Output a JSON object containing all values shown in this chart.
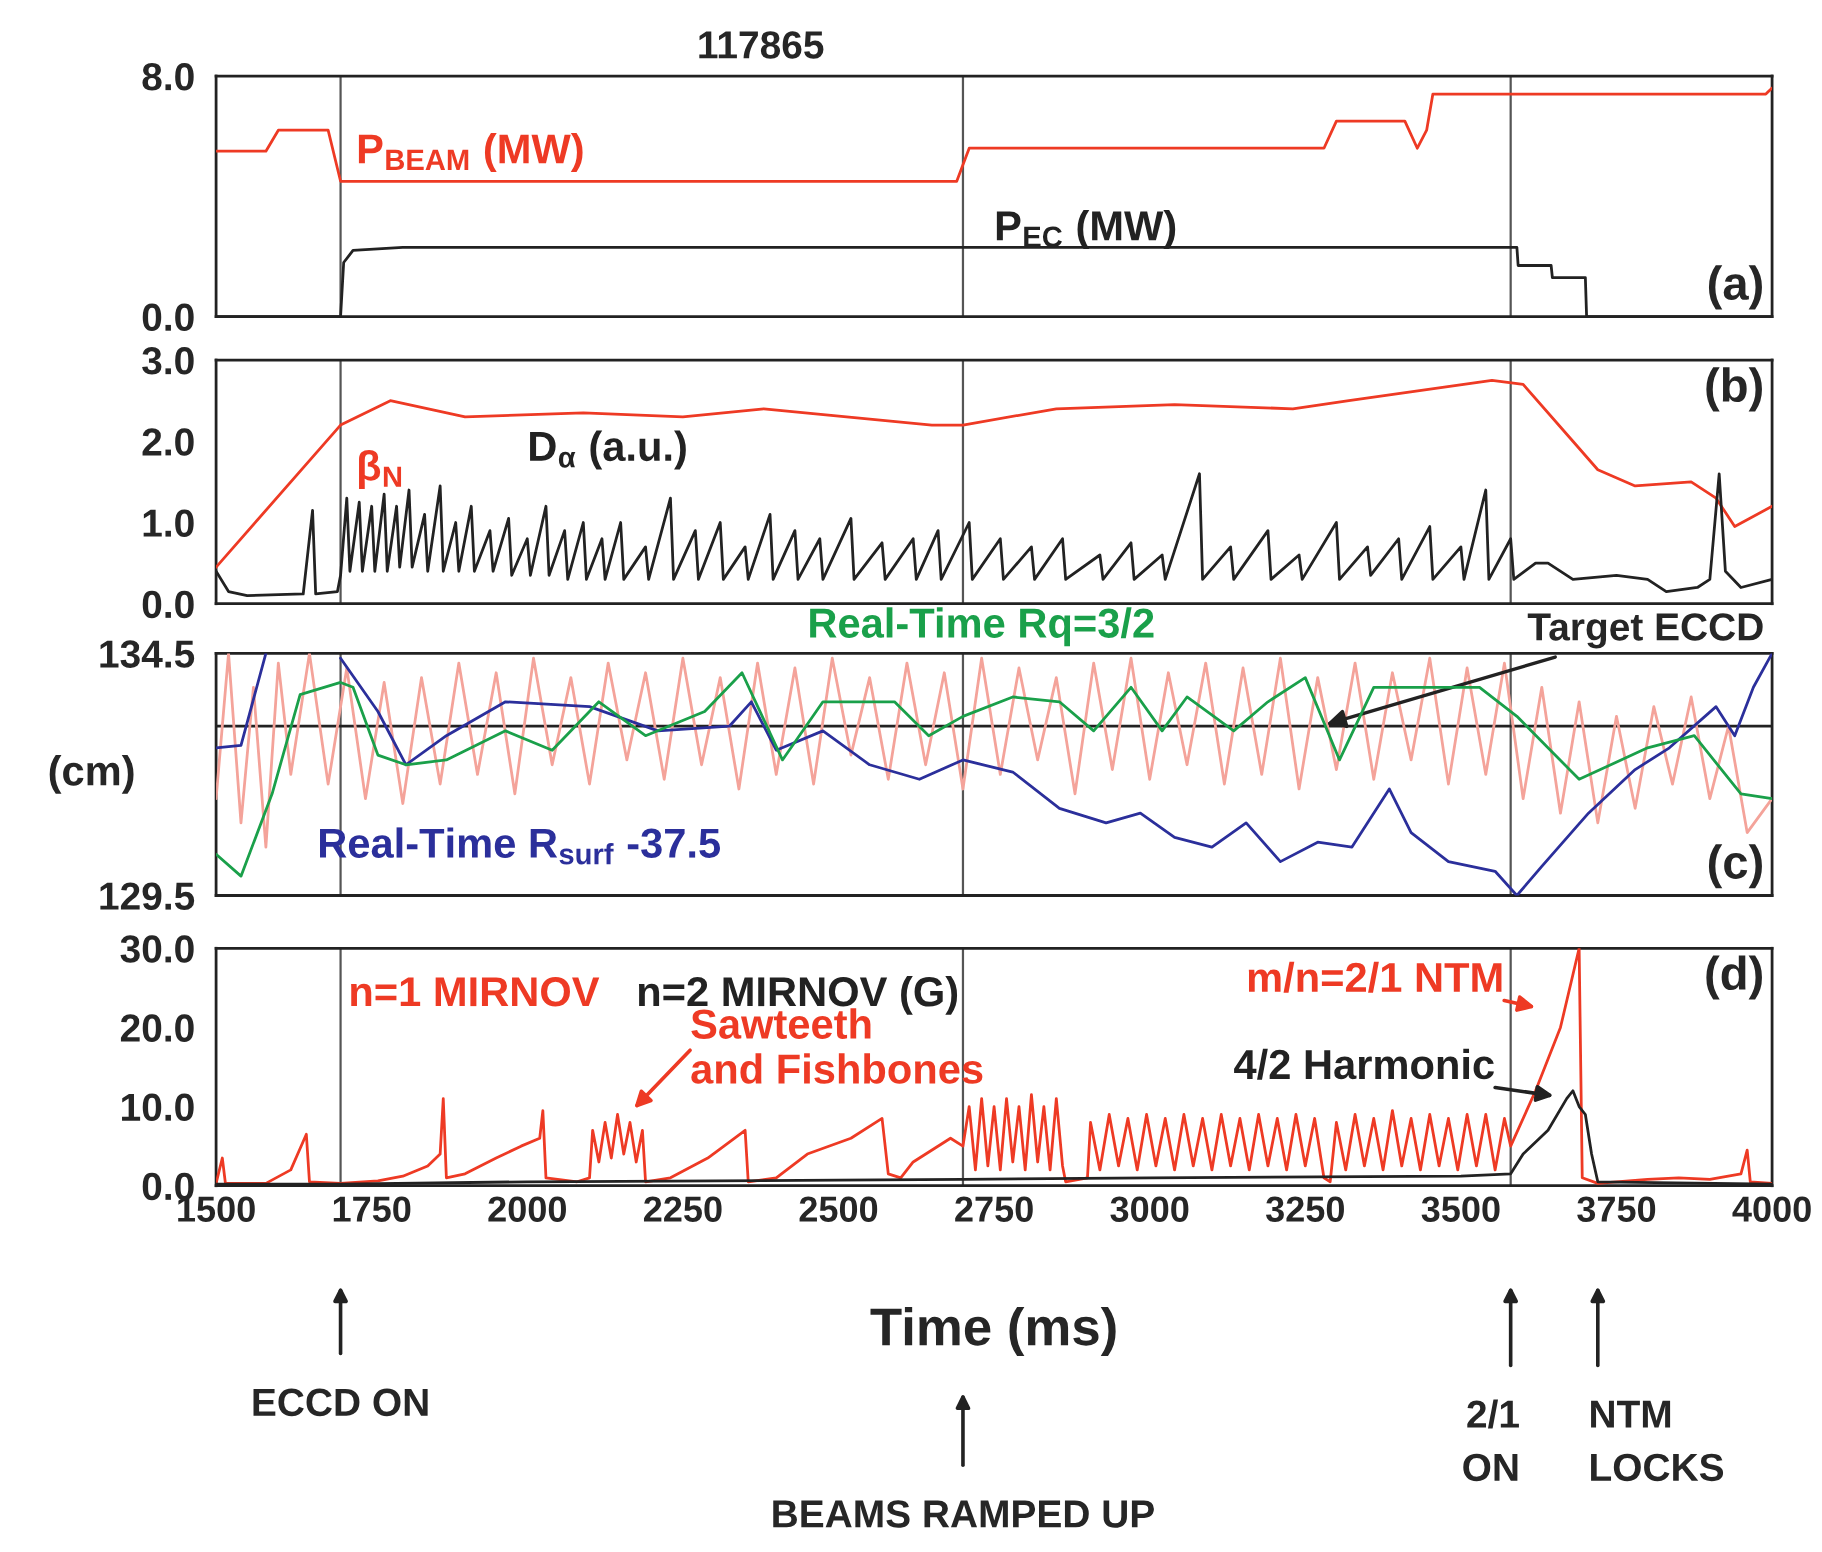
{
  "chart_data": [
    {
      "type": "line",
      "title": "117865",
      "xlim": [
        1500,
        4000
      ],
      "xticks": [
        1500,
        1750,
        2000,
        2250,
        2500,
        2750,
        3000,
        3250,
        3500,
        3750,
        4000
      ],
      "ylim": [
        0,
        8
      ],
      "yticks": [
        {
          "value": 0,
          "label": "0.0"
        },
        {
          "value": 8,
          "label": "8.0"
        }
      ],
      "tick_labels": "y",
      "ref_lines": [
        {
          "axis": "x",
          "value": 1700,
          "color": "#555555"
        },
        {
          "axis": "x",
          "value": 2700,
          "color": "#555555"
        },
        {
          "axis": "x",
          "value": 3580,
          "color": "#555555"
        }
      ],
      "annotations": [
        "(a)"
      ],
      "series": [
        {
          "name": "P$_{BEAM}$ (MW)",
          "color": "#ee3a24",
          "x": [
            1500,
            1580,
            1600,
            1680,
            1700,
            2690,
            2710,
            3280,
            3300,
            3410,
            3430,
            3445,
            3455,
            3990,
            4000
          ],
          "values": [
            5.5,
            5.5,
            6.2,
            6.2,
            4.5,
            4.5,
            5.6,
            5.6,
            6.5,
            6.5,
            5.6,
            6.2,
            7.4,
            7.4,
            7.6
          ]
        },
        {
          "name": "P$_{EC}$ (MW)",
          "color": "#222222",
          "x": [
            1500,
            1700,
            1705,
            1720,
            1800,
            3590,
            3592,
            3645,
            3647,
            3700,
            3702,
            4000
          ],
          "values": [
            0,
            0,
            1.8,
            2.2,
            2.3,
            2.3,
            1.7,
            1.7,
            1.3,
            1.3,
            0,
            0
          ]
        }
      ]
    },
    {
      "type": "line",
      "xlim": [
        1500,
        4000
      ],
      "xticks": [
        1500,
        1750,
        2000,
        2250,
        2500,
        2750,
        3000,
        3250,
        3500,
        3750,
        4000
      ],
      "ylim": [
        0,
        3
      ],
      "yticks": [
        {
          "value": 0,
          "label": "0.0"
        },
        {
          "value": 1,
          "label": "1.0"
        },
        {
          "value": 2,
          "label": "2.0"
        },
        {
          "value": 3,
          "label": "3.0"
        }
      ],
      "tick_labels": "y",
      "ref_lines": [
        {
          "axis": "x",
          "value": 1700,
          "color": "#555555"
        },
        {
          "axis": "x",
          "value": 2700,
          "color": "#555555"
        },
        {
          "axis": "x",
          "value": 3580,
          "color": "#555555"
        }
      ],
      "annotations": [
        "(b)"
      ],
      "series": [
        {
          "name": "β$_{N}$",
          "color": "#ee3a24",
          "x": [
            1500,
            1700,
            1780,
            1900,
            2090,
            2250,
            2380,
            2650,
            2700,
            2850,
            3040,
            3230,
            3320,
            3550,
            3600,
            3680,
            3720,
            3780,
            3870,
            3910,
            3940,
            4000
          ],
          "values": [
            0.45,
            2.2,
            2.5,
            2.3,
            2.35,
            2.3,
            2.4,
            2.2,
            2.2,
            2.4,
            2.45,
            2.4,
            2.5,
            2.75,
            2.7,
            2.0,
            1.65,
            1.45,
            1.5,
            1.3,
            0.95,
            1.2
          ]
        },
        {
          "name": "D$_{α}$ (a.u.)",
          "color": "#222222",
          "x": [
            1500,
            1520,
            1550,
            1640,
            1655,
            1660,
            1695,
            1700,
            1710,
            1715,
            1730,
            1735,
            1750,
            1755,
            1770,
            1775,
            1790,
            1795,
            1810,
            1815,
            1835,
            1840,
            1860,
            1865,
            1885,
            1890,
            1910,
            1915,
            1940,
            1945,
            1970,
            1975,
            2000,
            2005,
            2030,
            2035,
            2060,
            2065,
            2090,
            2095,
            2120,
            2125,
            2150,
            2155,
            2190,
            2195,
            2230,
            2235,
            2270,
            2275,
            2310,
            2315,
            2350,
            2355,
            2390,
            2395,
            2430,
            2435,
            2470,
            2475,
            2520,
            2525,
            2570,
            2575,
            2620,
            2625,
            2660,
            2665,
            2710,
            2715,
            2760,
            2765,
            2810,
            2815,
            2860,
            2865,
            2920,
            2925,
            2970,
            2975,
            3020,
            3025,
            3080,
            3085,
            3130,
            3135,
            3190,
            3195,
            3240,
            3245,
            3300,
            3305,
            3350,
            3355,
            3400,
            3405,
            3450,
            3455,
            3500,
            3505,
            3540,
            3545,
            3580,
            3585,
            3620,
            3640,
            3680,
            3750,
            3800,
            3830,
            3880,
            3900,
            3915,
            3925,
            3950,
            4000
          ],
          "values": [
            0.4,
            0.15,
            0.1,
            0.12,
            1.15,
            0.12,
            0.15,
            0.35,
            1.3,
            0.4,
            1.25,
            0.4,
            1.2,
            0.4,
            1.35,
            0.4,
            1.2,
            0.45,
            1.4,
            0.45,
            1.1,
            0.4,
            1.45,
            0.4,
            1.0,
            0.4,
            1.2,
            0.4,
            0.9,
            0.4,
            1.05,
            0.35,
            0.8,
            0.35,
            1.2,
            0.35,
            0.9,
            0.3,
            1.0,
            0.3,
            0.8,
            0.3,
            1.0,
            0.3,
            0.7,
            0.3,
            1.3,
            0.3,
            0.9,
            0.3,
            1.0,
            0.3,
            0.7,
            0.3,
            1.1,
            0.3,
            0.9,
            0.3,
            0.8,
            0.3,
            1.05,
            0.3,
            0.75,
            0.3,
            0.8,
            0.3,
            0.9,
            0.3,
            1.0,
            0.3,
            0.8,
            0.3,
            0.7,
            0.3,
            0.8,
            0.3,
            0.6,
            0.3,
            0.75,
            0.3,
            0.6,
            0.3,
            1.6,
            0.3,
            0.7,
            0.3,
            0.9,
            0.3,
            0.6,
            0.3,
            1.0,
            0.3,
            0.7,
            0.35,
            0.8,
            0.3,
            0.95,
            0.3,
            0.7,
            0.3,
            1.4,
            0.3,
            0.8,
            0.3,
            0.5,
            0.5,
            0.3,
            0.35,
            0.3,
            0.15,
            0.2,
            0.3,
            1.6,
            0.4,
            0.2,
            0.3
          ]
        }
      ]
    },
    {
      "type": "line",
      "ylabel": "(cm)",
      "xlim": [
        1500,
        4000
      ],
      "xticks": [
        1500,
        1750,
        2000,
        2250,
        2500,
        2750,
        3000,
        3250,
        3500,
        3750,
        4000
      ],
      "ylim": [
        129.5,
        134.5
      ],
      "yticks": [
        129.5,
        134.5
      ],
      "tick_labels": "y",
      "ref_lines": [
        {
          "axis": "x",
          "value": 1700,
          "color": "#555555"
        },
        {
          "axis": "x",
          "value": 2700,
          "color": "#555555"
        },
        {
          "axis": "x",
          "value": 3580,
          "color": "#555555"
        },
        {
          "axis": "y",
          "value": 133.0,
          "label": "Target ECCD",
          "color": "#222222"
        }
      ],
      "annotations": [
        "(c)"
      ],
      "series": [
        {
          "color": "#f4a39a",
          "x": [
            1500,
            1520,
            1540,
            1560,
            1580,
            1600,
            1620,
            1650,
            1680,
            1710,
            1740,
            1770,
            1800,
            1830,
            1860,
            1890,
            1920,
            1950,
            1980,
            2010,
            2040,
            2070,
            2100,
            2130,
            2160,
            2190,
            2220,
            2250,
            2280,
            2310,
            2340,
            2370,
            2400,
            2430,
            2460,
            2490,
            2520,
            2550,
            2580,
            2610,
            2640,
            2670,
            2700,
            2730,
            2760,
            2790,
            2820,
            2850,
            2880,
            2910,
            2940,
            2970,
            3000,
            3030,
            3060,
            3090,
            3120,
            3150,
            3180,
            3210,
            3240,
            3270,
            3300,
            3330,
            3360,
            3390,
            3420,
            3450,
            3480,
            3510,
            3540,
            3570,
            3600,
            3630,
            3660,
            3690,
            3720,
            3750,
            3780,
            3810,
            3840,
            3870,
            3900,
            3930,
            3960,
            4000
          ],
          "values": [
            131.5,
            134.5,
            131.0,
            133.8,
            130.5,
            134.3,
            132.0,
            134.5,
            131.8,
            134.2,
            131.5,
            133.9,
            131.4,
            134.0,
            131.8,
            134.3,
            132.0,
            134.1,
            131.6,
            134.4,
            132.2,
            134.0,
            131.8,
            134.3,
            132.3,
            134.1,
            131.9,
            134.4,
            132.2,
            134.0,
            131.7,
            134.3,
            132.0,
            134.2,
            131.8,
            134.4,
            132.4,
            134.0,
            131.9,
            134.3,
            132.2,
            134.1,
            131.7,
            134.4,
            132.0,
            134.2,
            132.3,
            134.0,
            131.6,
            134.3,
            132.1,
            134.4,
            131.9,
            134.1,
            132.2,
            134.3,
            131.8,
            134.2,
            132.0,
            134.4,
            131.7,
            134.0,
            132.1,
            134.3,
            131.9,
            134.1,
            132.3,
            134.4,
            131.8,
            134.2,
            132.0,
            134.3,
            131.5,
            133.8,
            131.2,
            133.5,
            131.0,
            133.2,
            131.3,
            133.4,
            131.8,
            133.6,
            131.5,
            133.0,
            130.8,
            131.5
          ]
        },
        {
          "name": "Real-Time R$_{surf}$ -37.5",
          "color": "#2b2f9b",
          "x": [
            1500,
            1540,
            1580,
            1640,
            1700,
            1760,
            1805,
            1870,
            1965,
            2100,
            2210,
            2325,
            2360,
            2400,
            2475,
            2550,
            2630,
            2700,
            2780,
            2855,
            2930,
            2985,
            3040,
            3100,
            3155,
            3210,
            3270,
            3325,
            3385,
            3420,
            3480,
            3555,
            3590,
            3630,
            3705,
            3780,
            3835,
            3910,
            3940,
            3970,
            4000
          ],
          "values": [
            132.55,
            132.6,
            134.5,
            null,
            134.4,
            133.3,
            132.2,
            132.8,
            133.5,
            133.4,
            132.9,
            133.0,
            133.5,
            132.5,
            132.9,
            132.2,
            131.9,
            132.3,
            132.05,
            131.3,
            131.0,
            131.2,
            130.7,
            130.5,
            131.0,
            130.2,
            130.6,
            130.5,
            131.7,
            130.8,
            130.2,
            130.0,
            129.5,
            130.1,
            131.2,
            132.1,
            132.55,
            133.4,
            132.8,
            133.8,
            134.5
          ]
        },
        {
          "name": "Real-Time Rq=3/2",
          "color": "#1aa04a",
          "x": [
            1500,
            1540,
            1590,
            1635,
            1700,
            1720,
            1760,
            1805,
            1870,
            1965,
            2040,
            2115,
            2190,
            2285,
            2345,
            2410,
            2475,
            2590,
            2645,
            2700,
            2780,
            2855,
            2910,
            2970,
            3020,
            3060,
            3135,
            3190,
            3250,
            3305,
            3360,
            3530,
            3590,
            3690,
            3800,
            3875,
            3950,
            4000
          ],
          "values": [
            130.35,
            129.9,
            131.6,
            133.65,
            133.9,
            133.8,
            132.4,
            132.2,
            132.3,
            132.9,
            132.5,
            133.5,
            132.8,
            133.3,
            134.1,
            132.3,
            133.5,
            133.5,
            132.8,
            133.2,
            133.6,
            133.5,
            132.9,
            133.8,
            132.9,
            133.6,
            132.9,
            133.5,
            134.0,
            132.3,
            133.8,
            133.8,
            133.2,
            131.9,
            132.55,
            132.8,
            131.6,
            131.5
          ]
        }
      ]
    },
    {
      "type": "line",
      "xlabel": "Time (ms)",
      "xlim": [
        1500,
        4000
      ],
      "xticks": [
        1500,
        1750,
        2000,
        2250,
        2500,
        2750,
        3000,
        3250,
        3500,
        3750,
        4000
      ],
      "ylim": [
        0,
        30
      ],
      "yticks": [
        {
          "value": 0,
          "label": "0.0"
        },
        {
          "value": 10,
          "label": "10.0"
        },
        {
          "value": 20,
          "label": "20.0"
        },
        {
          "value": 30,
          "label": "30.0"
        }
      ],
      "ref_lines": [
        {
          "axis": "x",
          "value": 1700,
          "color": "#555555"
        },
        {
          "axis": "x",
          "value": 2700,
          "color": "#555555"
        },
        {
          "axis": "x",
          "value": 3580,
          "color": "#555555"
        }
      ],
      "annotations": [
        "(d)",
        {
          "text": "Sawteeth\nand Fishbones",
          "x": 2150,
          "y": 8
        },
        {
          "text": "m/n=2/1 NTM",
          "x": 3650,
          "y": 22
        },
        {
          "text": "4/2 Harmonic",
          "x": 3680,
          "y": 11
        },
        "ECCD ON",
        "BEAMS RAMPED UP",
        "2/1\nON",
        "NTM\nLOCKS"
      ],
      "series": [
        {
          "name": "n=1 MIRNOV",
          "color": "#ee3a24",
          "x": [
            1500,
            1510,
            1515,
            1580,
            1620,
            1645,
            1650,
            1700,
            1760,
            1800,
            1840,
            1860,
            1865,
            1870,
            1900,
            1950,
            1990,
            2020,
            2025,
            2030,
            2080,
            2100,
            2105,
            2115,
            2125,
            2135,
            2145,
            2155,
            2165,
            2175,
            2185,
            2190,
            2230,
            2290,
            2350,
            2355,
            2400,
            2450,
            2520,
            2570,
            2580,
            2600,
            2620,
            2680,
            2700,
            2710,
            2720,
            2730,
            2740,
            2750,
            2760,
            2770,
            2780,
            2790,
            2800,
            2810,
            2820,
            2830,
            2840,
            2850,
            2860,
            2865,
            2900,
            2905,
            2920,
            2935,
            2950,
            2965,
            2980,
            2995,
            3010,
            3025,
            3040,
            3055,
            3070,
            3085,
            3100,
            3115,
            3130,
            3145,
            3160,
            3175,
            3190,
            3205,
            3220,
            3235,
            3250,
            3265,
            3280,
            3290,
            3300,
            3315,
            3330,
            3345,
            3360,
            3375,
            3390,
            3405,
            3420,
            3435,
            3450,
            3465,
            3480,
            3495,
            3510,
            3525,
            3540,
            3555,
            3570,
            3580,
            3620,
            3660,
            3690,
            3695,
            3720,
            3800,
            3850,
            3900,
            3950,
            3960,
            3965,
            4000
          ],
          "values": [
            0.3,
            3.5,
            0.3,
            0.3,
            2,
            6.5,
            0.5,
            0.3,
            0.6,
            1.2,
            2.5,
            4,
            11,
            1,
            1.5,
            3.5,
            5,
            6,
            9.5,
            1,
            0.5,
            1,
            7,
            3,
            8,
            3.5,
            9,
            4,
            8,
            3,
            7,
            0.5,
            1,
            3.5,
            7,
            0.5,
            1,
            4,
            6,
            8.5,
            1.5,
            1,
            3,
            6,
            5,
            10,
            2,
            11,
            2.5,
            10,
            2,
            11,
            3,
            10,
            2,
            11.5,
            3,
            10,
            2,
            11,
            2.5,
            0.5,
            1,
            8,
            2,
            9,
            2.5,
            8.5,
            2,
            9,
            2.5,
            8.5,
            2,
            9,
            2.5,
            8.5,
            2,
            9,
            2.5,
            8.5,
            2,
            9,
            2.5,
            8.5,
            2,
            9,
            2.5,
            8.5,
            1,
            0.5,
            8,
            2,
            9,
            2.5,
            8.5,
            2,
            9.5,
            2.5,
            8.5,
            2,
            9,
            2.5,
            8.5,
            2,
            9,
            2.5,
            9,
            2,
            8.5,
            5,
            12,
            20,
            30,
            1,
            0.3,
            0.8,
            1,
            0.8,
            1.5,
            4.5,
            0.5,
            0.3
          ]
        },
        {
          "name": "n=2 MIRNOV (G)",
          "color": "#222222",
          "x": [
            1500,
            1700,
            2000,
            2500,
            2700,
            3000,
            3500,
            3580,
            3600,
            3640,
            3670,
            3680,
            3690,
            3700,
            3710,
            3720,
            4000
          ],
          "values": [
            0.2,
            0.2,
            0.5,
            0.7,
            0.8,
            1.0,
            1.2,
            1.5,
            4,
            7,
            11,
            12,
            10,
            9,
            4,
            0.5,
            0.2
          ]
        }
      ]
    }
  ]
}
